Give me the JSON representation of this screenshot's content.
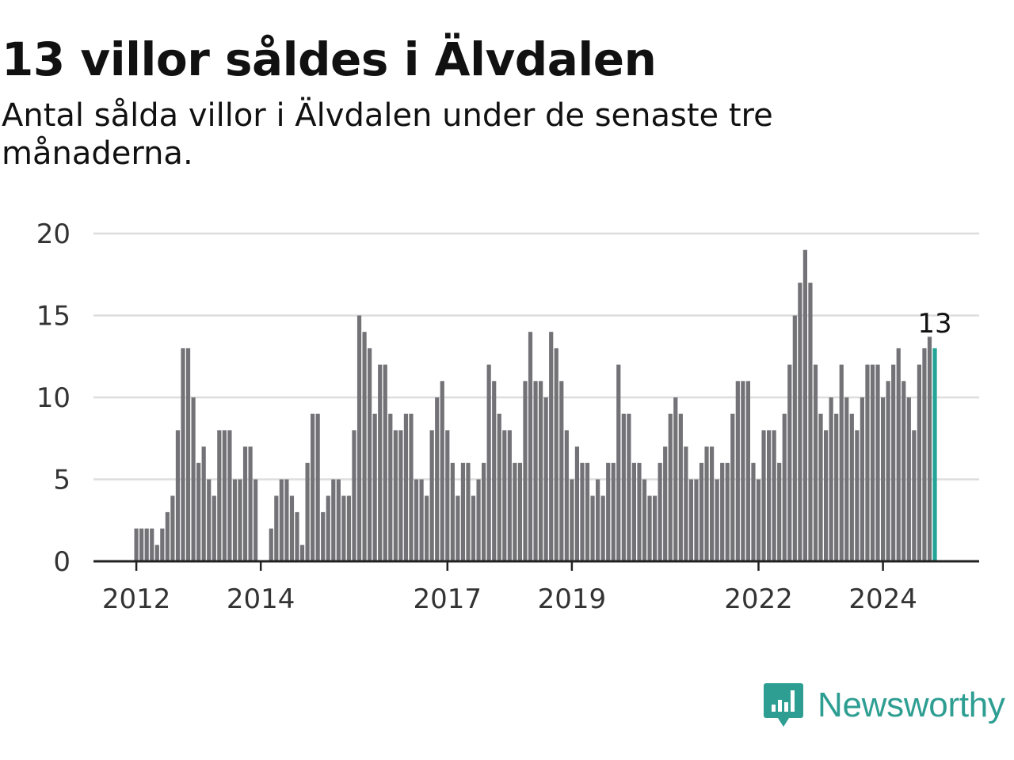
{
  "title": "13 villor såldes i Älvdalen",
  "subtitle": "Antal sålda villor i Älvdalen under de senaste tre månaderna.",
  "brand": {
    "name": "Newsworthy",
    "color": "#2e9e92",
    "icon": "newsworthy-logo-icon"
  },
  "chart_data": {
    "type": "bar",
    "title": "13 villor såldes i Älvdalen",
    "subtitle": "Antal sålda villor i Älvdalen under de senaste tre månaderna.",
    "xlabel": "",
    "ylabel": "",
    "ylim": [
      0,
      20
    ],
    "yticks": [
      0,
      5,
      10,
      15,
      20
    ],
    "xticks": [
      {
        "label": "2012",
        "index": 0
      },
      {
        "label": "2014",
        "index": 24
      },
      {
        "label": "2017",
        "index": 60
      },
      {
        "label": "2019",
        "index": 84
      },
      {
        "label": "2022",
        "index": 120
      },
      {
        "label": "2024",
        "index": 144
      }
    ],
    "start": "2012-01",
    "frequency": "monthly",
    "grid": true,
    "bar_color": "#737277",
    "highlight_color": "#23a596",
    "highlight_label": "13",
    "values": [
      2,
      2,
      2,
      2,
      1,
      2,
      3,
      4,
      8,
      13,
      13,
      10,
      6,
      7,
      5,
      4,
      8,
      8,
      8,
      5,
      5,
      7,
      7,
      5,
      0,
      0,
      2,
      4,
      5,
      5,
      4,
      3,
      1,
      6,
      9,
      9,
      3,
      4,
      5,
      5,
      4,
      4,
      8,
      15,
      14,
      13,
      9,
      12,
      12,
      9,
      8,
      8,
      9,
      9,
      5,
      5,
      4,
      8,
      10,
      11,
      8,
      6,
      4,
      6,
      6,
      4,
      5,
      6,
      12,
      11,
      9,
      8,
      8,
      6,
      6,
      11,
      14,
      11,
      11,
      10,
      14,
      13,
      11,
      8,
      5,
      7,
      6,
      6,
      4,
      5,
      4,
      6,
      6,
      12,
      9,
      9,
      6,
      6,
      5,
      4,
      4,
      6,
      7,
      9,
      10,
      9,
      7,
      5,
      5,
      6,
      7,
      7,
      5,
      6,
      6,
      9,
      11,
      11,
      11,
      6,
      5,
      8,
      8,
      8,
      6,
      9,
      12,
      15,
      17,
      19,
      17,
      12,
      9,
      8,
      10,
      9,
      12,
      10,
      9,
      8,
      10,
      12,
      12,
      12,
      10,
      11,
      12,
      13,
      11,
      10,
      8,
      12,
      13,
      13.7,
      13
    ]
  }
}
